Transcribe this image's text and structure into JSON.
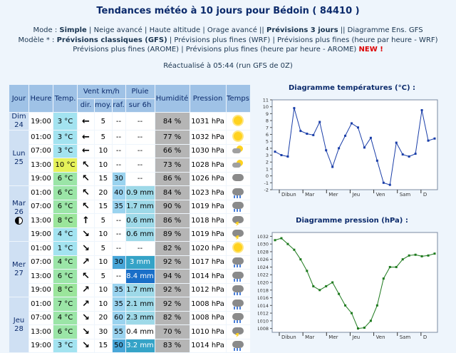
{
  "page": {
    "title": "Tendances météo à 10 jours pour Bédoin ( 84410 )",
    "mode_label": "Mode : ",
    "modes": [
      "Simple",
      "Neige avancé",
      "Haute altitude",
      "Orage avancé",
      "Prévisions 3 jours",
      "Diagramme Ens. GFS"
    ],
    "model_label": "Modèle * : ",
    "models": [
      "Prévisions classiques (GFS)",
      "Prévisions plus fines (WRF)",
      "Prévisions plus fines (heure par heure - WRF)",
      "Prévisions plus fines (AROME)",
      "Prévisions plus fines (heure par heure - AROME)"
    ],
    "new_badge": "NEW !",
    "updated": "Réactualisé à 05:44 (run GFS de 0Z)"
  },
  "table": {
    "headers": {
      "jour": "Jour",
      "heure": "Heure",
      "temp": "Temp.",
      "vent": "Vent km/h",
      "pluie": "Pluie",
      "pluie2": "sur 6h",
      "hum": "Humidité",
      "pression": "Pression",
      "temps": "Temps",
      "dir": "dir.",
      "moy": "moy.",
      "raf": "raf."
    },
    "days": [
      {
        "label1": "Dim",
        "label2": "24",
        "rows": [
          {
            "h": "19:00",
            "t": "3 °C",
            "tc": "c3",
            "dir": "←",
            "rot": 0,
            "moy": "5",
            "raf": "--",
            "rafc": "",
            "rain": "--",
            "rainc": "r0",
            "hum": "84 %",
            "pr": "1031 hPa",
            "wx": "sun"
          }
        ]
      },
      {
        "label1": "Lun",
        "label2": "25",
        "rows": [
          {
            "h": "01:00",
            "t": "3 °C",
            "tc": "c3",
            "dir": "←",
            "rot": 0,
            "moy": "5",
            "raf": "--",
            "rafc": "",
            "rain": "--",
            "rainc": "r0",
            "hum": "77 %",
            "pr": "1032 hPa",
            "wx": "sun"
          },
          {
            "h": "07:00",
            "t": "3 °C",
            "tc": "c3",
            "dir": "←",
            "rot": 0,
            "moy": "10",
            "raf": "--",
            "rafc": "",
            "rain": "--",
            "rainc": "r0",
            "hum": "66 %",
            "pr": "1030 hPa",
            "wx": "pc"
          },
          {
            "h": "13:00",
            "t": "10 °C",
            "tc": "c10",
            "dir": "↖",
            "rot": 0,
            "moy": "10",
            "raf": "--",
            "rafc": "",
            "rain": "--",
            "rainc": "r0",
            "hum": "73 %",
            "pr": "1028 hPa",
            "wx": "pc"
          },
          {
            "h": "19:00",
            "t": "6 °C",
            "tc": "c6",
            "dir": "↖",
            "rot": 0,
            "moy": "15",
            "raf": "30",
            "rafc": "gl",
            "rain": "--",
            "rainc": "r0",
            "hum": "86 %",
            "pr": "1026 hPa",
            "wx": "cloud"
          }
        ]
      },
      {
        "label1": "Mar",
        "label2": "26",
        "moon": true,
        "rows": [
          {
            "h": "01:00",
            "t": "6 °C",
            "tc": "c6",
            "dir": "↖",
            "rot": 0,
            "moy": "20",
            "raf": "40",
            "rafc": "gl",
            "rain": "0.9 mm",
            "rainc": "r1",
            "hum": "84 %",
            "pr": "1023 hPa",
            "wx": "rain"
          },
          {
            "h": "07:00",
            "t": "6 °C",
            "tc": "c6",
            "dir": "↖",
            "rot": 0,
            "moy": "15",
            "raf": "35",
            "rafc": "gl",
            "rain": "1.7 mm",
            "rainc": "r1",
            "hum": "90 %",
            "pr": "1019 hPa",
            "wx": "rain"
          },
          {
            "h": "13:00",
            "t": "8 °C",
            "tc": "c8",
            "dir": "↑",
            "rot": 0,
            "moy": "5",
            "raf": "--",
            "rafc": "",
            "rain": "0.6 mm",
            "rainc": "r1",
            "hum": "86 %",
            "pr": "1018 hPa",
            "wx": "ts"
          },
          {
            "h": "19:00",
            "t": "4 °C",
            "tc": "c3",
            "dir": "↘",
            "rot": 0,
            "moy": "10",
            "raf": "--",
            "rafc": "",
            "rain": "0.6 mm",
            "rainc": "r1",
            "hum": "89 %",
            "pr": "1019 hPa",
            "wx": "ts"
          }
        ]
      },
      {
        "label1": "Mer",
        "label2": "27",
        "rows": [
          {
            "h": "01:00",
            "t": "1 °C",
            "tc": "c3",
            "dir": "↘",
            "rot": 0,
            "moy": "5",
            "raf": "--",
            "rafc": "",
            "rain": "--",
            "rainc": "r0",
            "hum": "82 %",
            "pr": "1020 hPa",
            "wx": "sun"
          },
          {
            "h": "07:00",
            "t": "4 °C",
            "tc": "c6",
            "dir": "↗",
            "rot": 0,
            "moy": "10",
            "raf": "30",
            "rafc": "g",
            "rain": "3 mm",
            "rainc": "r2",
            "hum": "92 %",
            "pr": "1017 hPa",
            "wx": "rain"
          },
          {
            "h": "13:00",
            "t": "6 °C",
            "tc": "c6",
            "dir": "↖",
            "rot": 0,
            "moy": "5",
            "raf": "--",
            "rafc": "",
            "rain": "8.4 mm",
            "rainc": "r3",
            "hum": "94 %",
            "pr": "1014 hPa",
            "wx": "rain"
          },
          {
            "h": "19:00",
            "t": "8 °C",
            "tc": "c8",
            "dir": "↗",
            "rot": 0,
            "moy": "10",
            "raf": "35",
            "rafc": "gl",
            "rain": "1.7 mm",
            "rainc": "r1",
            "hum": "92 %",
            "pr": "1012 hPa",
            "wx": "rain"
          }
        ]
      },
      {
        "label1": "Jeu",
        "label2": "28",
        "rows": [
          {
            "h": "01:00",
            "t": "7 °C",
            "tc": "c6",
            "dir": "↗",
            "rot": 0,
            "moy": "10",
            "raf": "35",
            "rafc": "gl",
            "rain": "2.1 mm",
            "rainc": "r1",
            "hum": "92 %",
            "pr": "1008 hPa",
            "wx": "rain"
          },
          {
            "h": "07:00",
            "t": "4 °C",
            "tc": "c6",
            "dir": "↘",
            "rot": 0,
            "moy": "20",
            "raf": "60",
            "rafc": "gl",
            "rain": "2.3 mm",
            "rainc": "r1",
            "hum": "82 %",
            "pr": "1008 hPa",
            "wx": "rain"
          },
          {
            "h": "13:00",
            "t": "6 °C",
            "tc": "c6",
            "dir": "↘",
            "rot": 0,
            "moy": "30",
            "raf": "55",
            "rafc": "gl",
            "rain": "0.4 mm",
            "rainc": "r0",
            "hum": "70 %",
            "pr": "1010 hPa",
            "wx": "ts"
          },
          {
            "h": "19:00",
            "t": "3 °C",
            "tc": "c3",
            "dir": "↘",
            "rot": 0,
            "moy": "15",
            "raf": "50",
            "rafc": "g",
            "rain": "3.2 mm",
            "rainc": "r2",
            "hum": "83 %",
            "pr": "1014 hPa",
            "wx": "rain"
          }
        ]
      }
    ]
  },
  "chart_data": [
    {
      "type": "line",
      "title": "Diagramme températures (°C) :",
      "y_ticks": [
        -2,
        -1,
        0,
        1,
        2,
        3,
        4,
        5,
        6,
        7,
        8,
        9,
        10,
        11
      ],
      "x_labels": [
        "Dibun",
        "Mar",
        "Mer",
        "Jeu",
        "Ven",
        "Sam",
        "D"
      ],
      "values": [
        3.5,
        3,
        2.8,
        9.8,
        6.5,
        6.1,
        5.9,
        7.8,
        3.7,
        1.3,
        4,
        5.8,
        7.6,
        7,
        4.1,
        5.5,
        2.2,
        -1,
        -1.3,
        4.8,
        3.1,
        2.8,
        3.2,
        9.5,
        5.1,
        5.4
      ],
      "ylim": [
        -2,
        11
      ],
      "color": "#1a3ea8"
    },
    {
      "type": "line",
      "title": "Diagramme pression (hPa) :",
      "y_ticks": [
        1008,
        1010,
        1012,
        1014,
        1016,
        1018,
        1020,
        1022,
        1024,
        1026,
        1028,
        1030,
        1032
      ],
      "x_labels": [
        "Dibun",
        "Mar",
        "Mer",
        "Jeu",
        "Ven",
        "Sam",
        "D"
      ],
      "values": [
        1031,
        1031.5,
        1030,
        1028.5,
        1026,
        1023,
        1019,
        1018,
        1019,
        1020,
        1017,
        1014,
        1012,
        1008,
        1008.2,
        1010,
        1014,
        1021,
        1024,
        1024,
        1026,
        1027,
        1027.2,
        1026.8,
        1027,
        1027.5
      ],
      "ylim": [
        1007,
        1033
      ],
      "color": "#1e7a1e"
    }
  ]
}
